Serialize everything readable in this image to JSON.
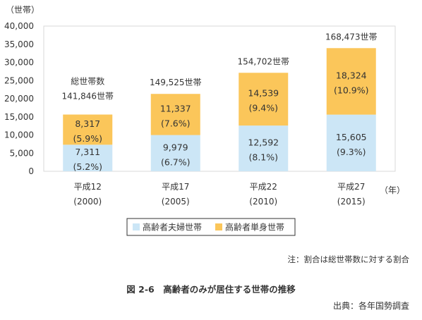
{
  "chart_data": {
    "type": "bar",
    "stacked": true,
    "ylabel": "（世帯）",
    "xunit": "（年）",
    "ylim": [
      0,
      40000
    ],
    "ytick_step": 5000,
    "ytick_labels": [
      "0",
      "5,000",
      "10,000",
      "15,000",
      "20,000",
      "25,000",
      "30,000",
      "35,000",
      "40,000"
    ],
    "categories": [
      {
        "era": "平成12",
        "year": "(2000)"
      },
      {
        "era": "平成17",
        "year": "(2005)"
      },
      {
        "era": "平成22",
        "year": "(2010)"
      },
      {
        "era": "平成27",
        "year": "(2015)"
      }
    ],
    "series": [
      {
        "name": "高齢者夫婦世帯",
        "color": "#cce6f6",
        "values": [
          7311,
          9979,
          12592,
          15605
        ],
        "value_labels": [
          "7,311",
          "9,979",
          "12,592",
          "15,605"
        ],
        "pct_labels": [
          "(5.2%)",
          "(6.7%)",
          "(8.1%)",
          "(9.3%)"
        ]
      },
      {
        "name": "高齢者単身世帯",
        "color": "#fbc65a",
        "values": [
          8317,
          11337,
          14539,
          18324
        ],
        "value_labels": [
          "8,317",
          "11,337",
          "14,539",
          "18,324"
        ],
        "pct_labels": [
          "(5.9%)",
          "(7.6%)",
          "(9.4%)",
          "(10.9%)"
        ]
      }
    ],
    "total_header": "総世帯数",
    "totals": [
      "141,846世帯",
      "149,525世帯",
      "154,702世帯",
      "168,473世帯"
    ],
    "grid": false,
    "legend_position": "bottom"
  },
  "note": "注：割合は総世帯数に対する割合",
  "figure_title": "図 2-6　高齢者のみが居住する世帯の推移",
  "source": "出典：各年国勢調査"
}
